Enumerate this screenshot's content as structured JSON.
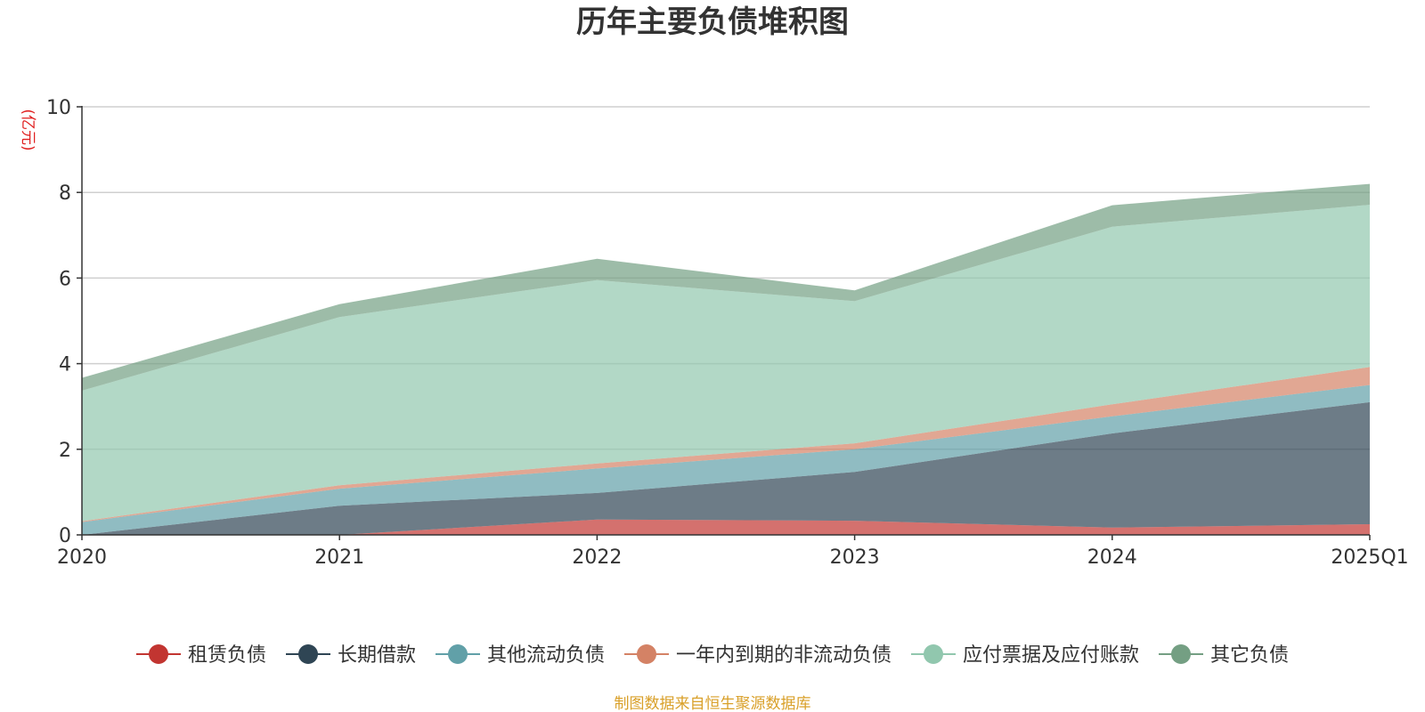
{
  "chart_data": {
    "type": "area",
    "stacked": true,
    "title": "历年主要负债堆积图",
    "unit_label": "(亿元)",
    "categories": [
      "2020",
      "2021",
      "2022",
      "2023",
      "2024",
      "2025Q1"
    ],
    "ylim": [
      0,
      10
    ],
    "yticks": [
      0,
      2,
      4,
      6,
      8,
      10
    ],
    "grid": true,
    "legend_position": "bottom",
    "series": [
      {
        "name": "租赁负债",
        "color": "#c23531",
        "values": [
          0,
          0,
          0.36,
          0.33,
          0.17,
          0.25
        ]
      },
      {
        "name": "长期借款",
        "color": "#2f4554",
        "values": [
          0,
          0.68,
          0.62,
          1.14,
          2.2,
          2.85
        ]
      },
      {
        "name": "其他流动负债",
        "color": "#61a0a8",
        "values": [
          0.3,
          0.4,
          0.57,
          0.53,
          0.4,
          0.4
        ]
      },
      {
        "name": "一年内到期的非流动负债",
        "color": "#d48265",
        "values": [
          0.02,
          0.08,
          0.12,
          0.14,
          0.28,
          0.42
        ]
      },
      {
        "name": "应付票据及应付账款",
        "color": "#91c7ae",
        "values": [
          3.05,
          3.93,
          4.28,
          3.32,
          4.15,
          3.79
        ]
      },
      {
        "name": "其它负债",
        "color": "#749f83",
        "values": [
          0.3,
          0.3,
          0.5,
          0.25,
          0.5,
          0.49
        ]
      }
    ]
  },
  "footer": {
    "source": "制图数据来自恒生聚源数据库"
  }
}
